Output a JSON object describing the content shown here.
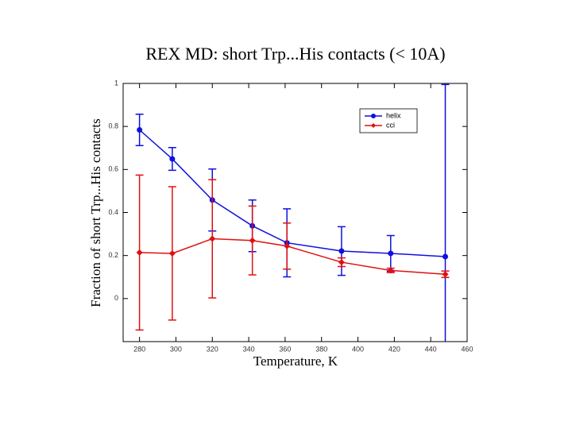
{
  "chart_data": {
    "type": "line",
    "title": "REX MD: short Trp...His contacts (< 10A)",
    "x_label": "Temperature, K",
    "y_label": "Fraction of short Trp...His contacts",
    "x": [
      280,
      298,
      320,
      342,
      361,
      391,
      418,
      448
    ],
    "series": [
      {
        "name": "helix",
        "color": "#1010e0",
        "marker": "circle",
        "values": [
          0.784,
          0.649,
          0.458,
          0.338,
          0.259,
          0.221,
          0.21,
          0.195
        ],
        "errors": [
          0.073,
          0.053,
          0.144,
          0.12,
          0.158,
          0.113,
          0.083,
          0.8
        ]
      },
      {
        "name": "cci",
        "color": "#e01010",
        "marker": "diamond",
        "values": [
          0.214,
          0.21,
          0.278,
          0.27,
          0.244,
          0.169,
          0.131,
          0.113
        ],
        "errors": [
          0.36,
          0.31,
          0.275,
          0.16,
          0.107,
          0.02,
          0.01,
          0.015
        ]
      }
    ],
    "xlim": [
      271,
      460
    ],
    "xticks": [
      280,
      300,
      320,
      340,
      360,
      380,
      400,
      420,
      440,
      460
    ],
    "ylim": [
      -0.2,
      1.0
    ],
    "yticks": [
      0,
      0.2,
      0.4,
      0.6,
      0.8,
      1
    ],
    "legend": "upper right"
  }
}
